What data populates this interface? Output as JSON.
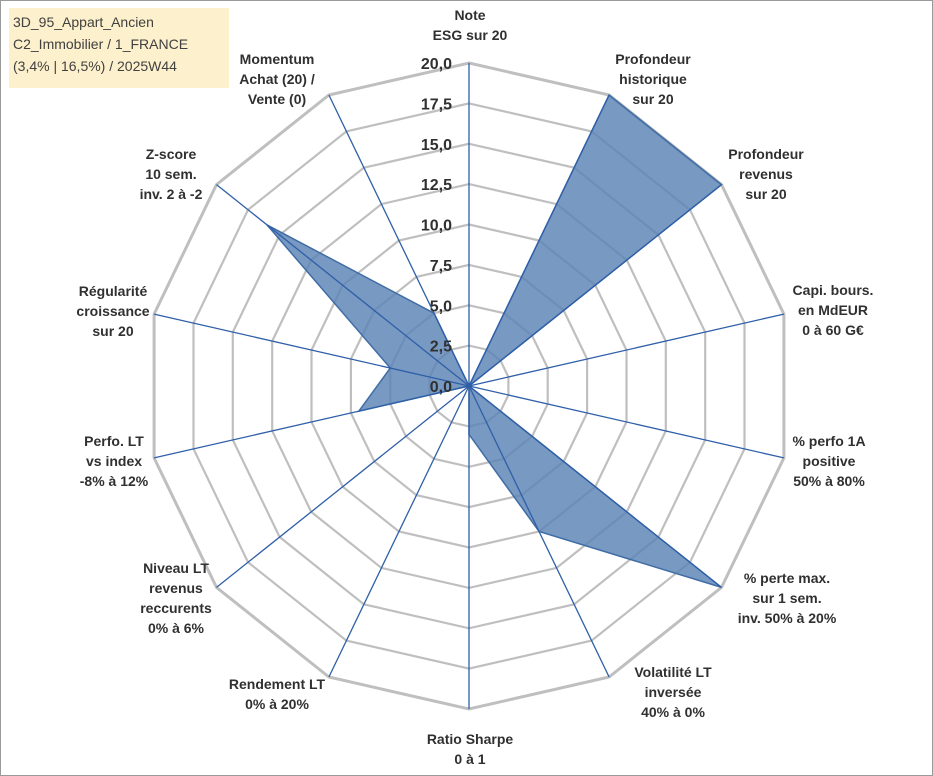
{
  "info_box": {
    "line1": "3D_95_Appart_Ancien",
    "line2": "C2_Immobilier / 1_FRANCE",
    "line3": "(3,4% | 16,5%) / 2025W44"
  },
  "colors": {
    "fill": "#5a82b4",
    "stroke": "#3f6da6",
    "grid": "#bfbfbf",
    "spoke": "#2f5fa8",
    "info_box_bg": "#fdf0cc"
  },
  "chart_data": {
    "type": "radar",
    "range": [
      0,
      20
    ],
    "grid": true,
    "legend": "none",
    "tick_labels": [
      "0,0",
      "2,5",
      "5,0",
      "7,5",
      "10,0",
      "12,5",
      "15,0",
      "17,5",
      "20,0"
    ],
    "axes": [
      [
        "Note",
        "ESG sur 20"
      ],
      [
        "Profondeur",
        "historique",
        "sur 20"
      ],
      [
        "Profondeur",
        "revenus",
        "sur 20"
      ],
      [
        "Capi. bours.",
        "en MdEUR",
        "0 à 60 G€"
      ],
      [
        "% perfo 1A",
        "positive",
        "50% à 80%"
      ],
      [
        "% perte max.",
        "sur 1 sem.",
        "inv. 50% à 20%"
      ],
      [
        "Volatilité LT",
        "inversée",
        "40% à 0%"
      ],
      [
        "Ratio Sharpe",
        "0 à 1"
      ],
      [
        "Rendement LT",
        "0% à 20%"
      ],
      [
        "Niveau LT",
        "revenus",
        "reccurents",
        "0% à 6%"
      ],
      [
        "Perfo. LT",
        "vs index",
        "-8% à 12%"
      ],
      [
        "Régularité",
        "croissance",
        "sur 20"
      ],
      [
        "Z-score",
        "10 sem.",
        "inv. 2 à -2"
      ],
      [
        "Momentum",
        "Achat (20) /",
        "Vente (0)"
      ]
    ],
    "series": [
      {
        "values": [
          0,
          20,
          20,
          0,
          0,
          20,
          10,
          3,
          0,
          0,
          7,
          5,
          16,
          5
        ]
      }
    ]
  }
}
